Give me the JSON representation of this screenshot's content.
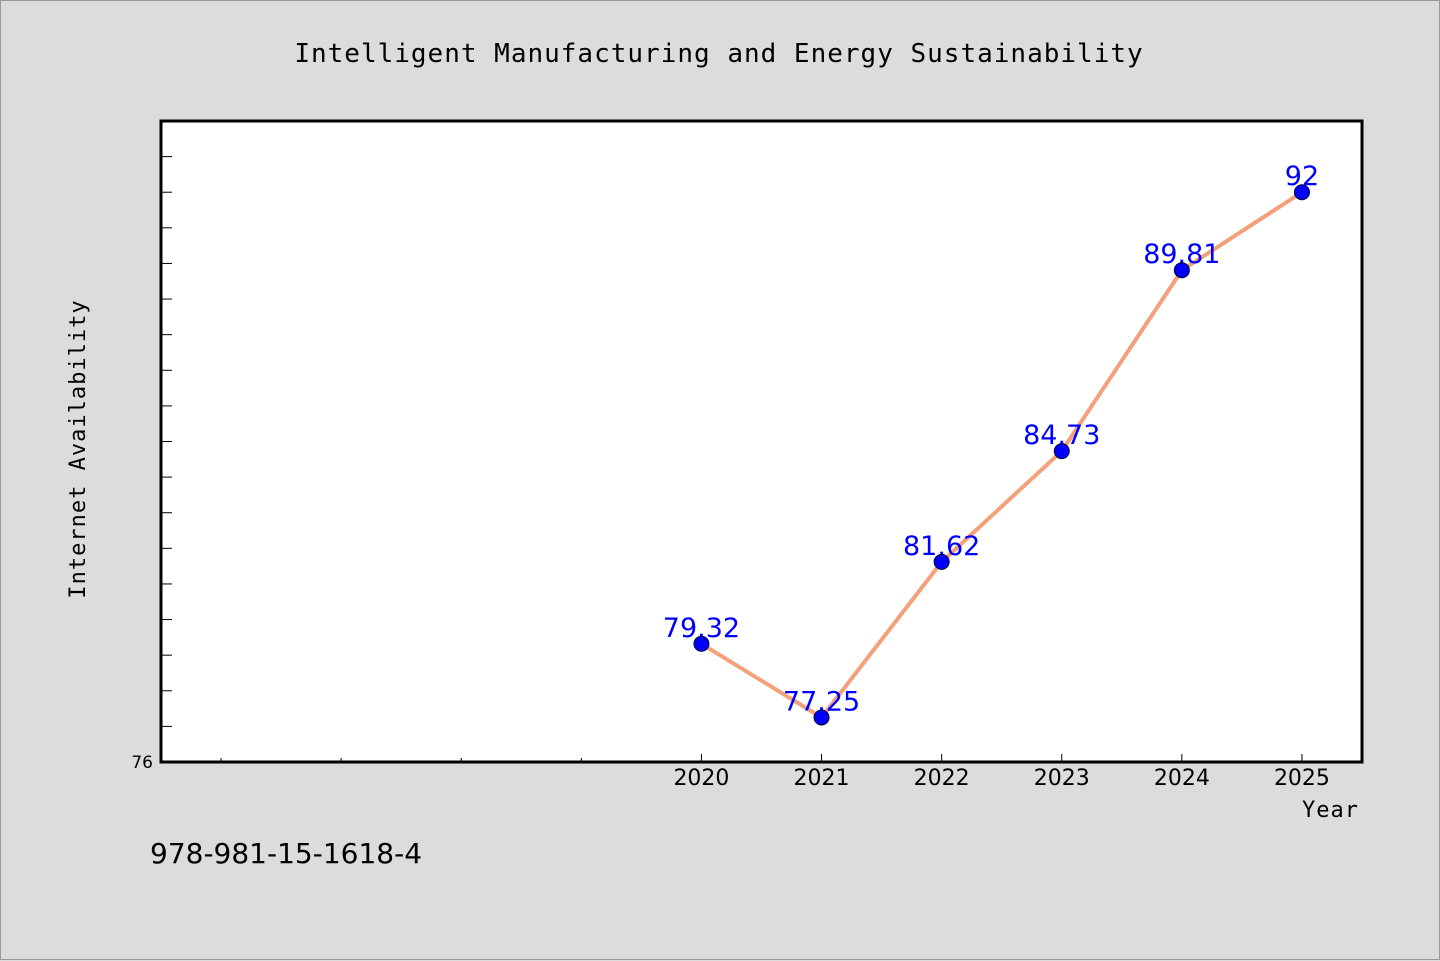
{
  "chart_data": {
    "type": "line",
    "title": "Intelligent Manufacturing and Energy Sustainability",
    "xlabel": "Year",
    "ylabel": "Internet Availability",
    "x": [
      2020,
      2021,
      2022,
      2023,
      2024,
      2025
    ],
    "series": [
      {
        "values": [
          79.32,
          77.25,
          81.62,
          84.73,
          89.81,
          92
        ]
      }
    ],
    "data_labels": [
      "79.32",
      "77.25",
      "81.62",
      "84.73",
      "89.81",
      "92"
    ],
    "x_tick_labels": [
      "2020",
      "2021",
      "2022",
      "2023",
      "2024",
      "2025"
    ],
    "y_tick_labels": [
      "76"
    ],
    "xlim": [
      2015.5,
      2025.5
    ],
    "ylim": [
      76,
      94
    ],
    "x_minor_ticks": [
      2016,
      2017,
      2018,
      2019
    ],
    "y_minor_step": 1,
    "grid": false,
    "legend": "none"
  },
  "footer": {
    "isbn": "978-981-15-1618-4"
  },
  "colors": {
    "background": "#dcdcdc",
    "plot_background": "#ffffff",
    "line": "#f4a07a",
    "marker": "#0000ff",
    "data_label": "#0000ff"
  }
}
